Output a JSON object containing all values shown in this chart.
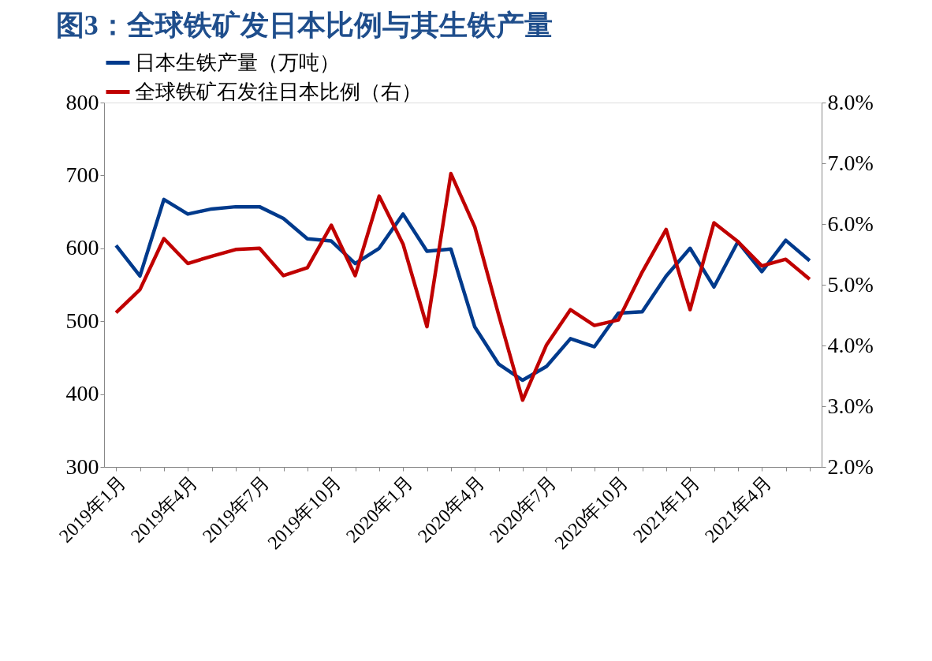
{
  "chart_data": {
    "type": "line",
    "title": "图3：全球铁矿发日本比例与其生铁产量",
    "categories": [
      "2019年1月",
      null,
      null,
      "2019年4月",
      null,
      null,
      "2019年7月",
      null,
      null,
      "2019年10月",
      null,
      null,
      "2020年1月",
      null,
      null,
      "2020年4月",
      null,
      null,
      "2020年7月",
      null,
      null,
      "2020年10月",
      null,
      null,
      "2021年1月",
      null,
      null,
      "2021年4月",
      null,
      null
    ],
    "series": [
      {
        "name": "日本生铁产量（万吨）",
        "color": "#003a8c",
        "values": [
          604,
          562,
          667,
          647,
          654,
          657,
          657,
          641,
          613,
          610,
          579,
          600,
          647,
          596,
          599,
          492,
          441,
          419,
          438,
          476,
          465,
          511,
          513,
          562,
          600,
          547,
          609,
          568,
          611,
          583
        ]
      },
      {
        "name": "全球铁矿石发往日本比例（右）",
        "color": "#c00000",
        "axis": "y2",
        "values": [
          4.54,
          4.92,
          5.76,
          5.35,
          5.47,
          5.58,
          5.6,
          5.15,
          5.28,
          5.98,
          5.15,
          6.46,
          5.67,
          4.31,
          6.83,
          5.95,
          4.5,
          3.1,
          4.01,
          4.59,
          4.33,
          4.42,
          5.21,
          5.91,
          4.59,
          6.02,
          5.71,
          5.31,
          5.42,
          5.09
        ]
      }
    ],
    "ylim": [
      300,
      800
    ],
    "yticks": [
      300,
      400,
      500,
      600,
      700,
      800
    ],
    "y2lim": [
      2,
      8
    ],
    "y2ticks": [
      {
        "value": 2,
        "label": "2.0%"
      },
      {
        "value": 3,
        "label": "3.0%"
      },
      {
        "value": 4,
        "label": "4.0%"
      },
      {
        "value": 5,
        "label": "5.0%"
      },
      {
        "value": 6,
        "label": "6.0%"
      },
      {
        "value": 7,
        "label": "7.0%"
      },
      {
        "value": 8,
        "label": "8.0%"
      }
    ],
    "grid": false,
    "legend": "top",
    "marker": "none",
    "line_style": "solid"
  }
}
